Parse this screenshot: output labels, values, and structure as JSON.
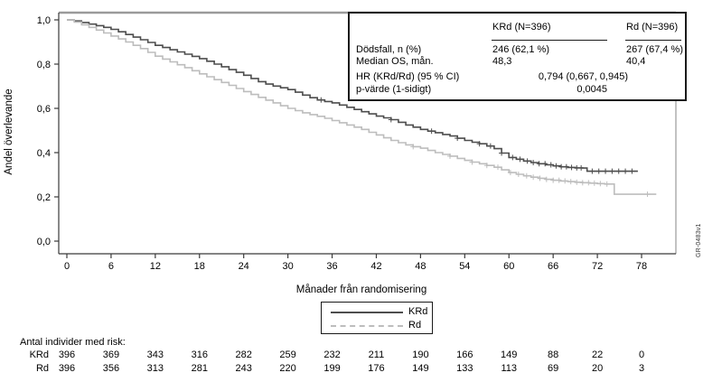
{
  "figure": {
    "watermark": "GR-0483v1"
  },
  "chart_data": {
    "type": "line",
    "subtype": "kaplan-meier-step",
    "title": "",
    "xlabel": "Månader från randomisering",
    "ylabel": "Andel överlevande",
    "xlim": [
      0,
      80
    ],
    "ylim": [
      0.0,
      1.0
    ],
    "grid": false,
    "x_ticks": [
      0,
      6,
      12,
      18,
      24,
      30,
      36,
      42,
      48,
      54,
      60,
      66,
      72,
      78
    ],
    "y_ticks": [
      {
        "value": 0.0,
        "label": "0,0"
      },
      {
        "value": 0.2,
        "label": "0,2"
      },
      {
        "value": 0.4,
        "label": "0,4"
      },
      {
        "value": 0.6,
        "label": "0,6"
      },
      {
        "value": 0.8,
        "label": "0,8"
      },
      {
        "value": 1.0,
        "label": "1,0"
      }
    ],
    "legend_position": "bottom",
    "series": [
      {
        "name": "KRd",
        "color": "#4d4d4d",
        "style": "solid",
        "points": [
          [
            0,
            1.0
          ],
          [
            1,
            0.995
          ],
          [
            2,
            0.988
          ],
          [
            3,
            0.981
          ],
          [
            4,
            0.974
          ],
          [
            5,
            0.966
          ],
          [
            6,
            0.957
          ],
          [
            7,
            0.946
          ],
          [
            8,
            0.934
          ],
          [
            9,
            0.922
          ],
          [
            10,
            0.91
          ],
          [
            11,
            0.898
          ],
          [
            12,
            0.885
          ],
          [
            13,
            0.875
          ],
          [
            14,
            0.865
          ],
          [
            15,
            0.855
          ],
          [
            16,
            0.845
          ],
          [
            17,
            0.835
          ],
          [
            18,
            0.825
          ],
          [
            19,
            0.813
          ],
          [
            20,
            0.8
          ],
          [
            21,
            0.788
          ],
          [
            22,
            0.775
          ],
          [
            23,
            0.763
          ],
          [
            24,
            0.75
          ],
          [
            25,
            0.735
          ],
          [
            26,
            0.721
          ],
          [
            27,
            0.71
          ],
          [
            28,
            0.701
          ],
          [
            29,
            0.693
          ],
          [
            30,
            0.685
          ],
          [
            31,
            0.673
          ],
          [
            32,
            0.66
          ],
          [
            33,
            0.648
          ],
          [
            34,
            0.638
          ],
          [
            35,
            0.631
          ],
          [
            36,
            0.625
          ],
          [
            37,
            0.615
          ],
          [
            38,
            0.605
          ],
          [
            39,
            0.595
          ],
          [
            40,
            0.585
          ],
          [
            41,
            0.575
          ],
          [
            42,
            0.565
          ],
          [
            43,
            0.557
          ],
          [
            44,
            0.549
          ],
          [
            45,
            0.537
          ],
          [
            46,
            0.525
          ],
          [
            47,
            0.515
          ],
          [
            48,
            0.505
          ],
          [
            49,
            0.497
          ],
          [
            50,
            0.49
          ],
          [
            51,
            0.482
          ],
          [
            52,
            0.475
          ],
          [
            53,
            0.465
          ],
          [
            54,
            0.455
          ],
          [
            55,
            0.447
          ],
          [
            56,
            0.44
          ],
          [
            57,
            0.43
          ],
          [
            58,
            0.418
          ],
          [
            59,
            0.398
          ],
          [
            60,
            0.378
          ],
          [
            61,
            0.37
          ],
          [
            62,
            0.362
          ],
          [
            63,
            0.355
          ],
          [
            64,
            0.35
          ],
          [
            65,
            0.345
          ],
          [
            66,
            0.34
          ],
          [
            67,
            0.336
          ],
          [
            68,
            0.333
          ],
          [
            69,
            0.331
          ],
          [
            70,
            0.33
          ],
          [
            70.6,
            0.316
          ],
          [
            77.5,
            0.316
          ]
        ],
        "censor_months": [
          34.5,
          44,
          49.5,
          53,
          56,
          57.5,
          59,
          60.5,
          61.5,
          62.5,
          63.3,
          64.1,
          64.9,
          65.7,
          66.4,
          67.1,
          67.8,
          68.5,
          69.2,
          69.8,
          71.3,
          72.2,
          73.1,
          74,
          74.9,
          75.8,
          76.7
        ]
      },
      {
        "name": "Rd",
        "color": "#bdbdbd",
        "style": "dashed",
        "points": [
          [
            0,
            1.0
          ],
          [
            1,
            0.99
          ],
          [
            2,
            0.978
          ],
          [
            3,
            0.966
          ],
          [
            4,
            0.954
          ],
          [
            5,
            0.941
          ],
          [
            6,
            0.927
          ],
          [
            7,
            0.914
          ],
          [
            8,
            0.9
          ],
          [
            9,
            0.885
          ],
          [
            10,
            0.87
          ],
          [
            11,
            0.853
          ],
          [
            12,
            0.836
          ],
          [
            13,
            0.823
          ],
          [
            14,
            0.81
          ],
          [
            15,
            0.797
          ],
          [
            16,
            0.784
          ],
          [
            17,
            0.77
          ],
          [
            18,
            0.756
          ],
          [
            19,
            0.743
          ],
          [
            20,
            0.73
          ],
          [
            21,
            0.717
          ],
          [
            22,
            0.704
          ],
          [
            23,
            0.69
          ],
          [
            24,
            0.676
          ],
          [
            25,
            0.663
          ],
          [
            26,
            0.65
          ],
          [
            27,
            0.637
          ],
          [
            28,
            0.625
          ],
          [
            29,
            0.612
          ],
          [
            30,
            0.6
          ],
          [
            31,
            0.59
          ],
          [
            32,
            0.58
          ],
          [
            33,
            0.572
          ],
          [
            34,
            0.564
          ],
          [
            35,
            0.555
          ],
          [
            36,
            0.545
          ],
          [
            37,
            0.535
          ],
          [
            38,
            0.525
          ],
          [
            39,
            0.515
          ],
          [
            40,
            0.505
          ],
          [
            41,
            0.492
          ],
          [
            42,
            0.48
          ],
          [
            43,
            0.467
          ],
          [
            44,
            0.455
          ],
          [
            45,
            0.445
          ],
          [
            46,
            0.435
          ],
          [
            47,
            0.427
          ],
          [
            48,
            0.42
          ],
          [
            49,
            0.41
          ],
          [
            50,
            0.4
          ],
          [
            51,
            0.392
          ],
          [
            52,
            0.384
          ],
          [
            53,
            0.374
          ],
          [
            54,
            0.365
          ],
          [
            55,
            0.357
          ],
          [
            56,
            0.35
          ],
          [
            57,
            0.342
          ],
          [
            58,
            0.334
          ],
          [
            59,
            0.322
          ],
          [
            60,
            0.31
          ],
          [
            61,
            0.302
          ],
          [
            62,
            0.295
          ],
          [
            63,
            0.289
          ],
          [
            64,
            0.284
          ],
          [
            65,
            0.279
          ],
          [
            66,
            0.275
          ],
          [
            67,
            0.272
          ],
          [
            68,
            0.269
          ],
          [
            69,
            0.266
          ],
          [
            70,
            0.264
          ],
          [
            71,
            0.262
          ],
          [
            72,
            0.26
          ],
          [
            73,
            0.258
          ],
          [
            74.3,
            0.212
          ],
          [
            80,
            0.212
          ]
        ],
        "censor_months": [
          47,
          52,
          55,
          57,
          58.5,
          60.2,
          61.3,
          62.4,
          63.3,
          64.2,
          65.1,
          66,
          66.8,
          67.6,
          68.4,
          69.2,
          70,
          70.8,
          71.6,
          72.4,
          73.3,
          78.8
        ]
      }
    ]
  },
  "stats_box": {
    "col_headers": [
      "KRd (N=396)",
      "Rd (N=396)"
    ],
    "rows": [
      {
        "label": "Dödsfall, n (%)",
        "krd": "246 (62,1 %)",
        "rd": "267 (67,4 %)"
      },
      {
        "label": "Median OS, mån.",
        "krd": "48,3",
        "rd": "40,4"
      },
      {
        "label": "HR (KRd/Rd) (95 % CI)",
        "krd": "0,794 (0,667, 0,945)",
        "rd": ""
      },
      {
        "label": "p-värde (1-sidigt)",
        "krd": "0,0045",
        "rd": ""
      }
    ]
  },
  "legend": {
    "items": [
      {
        "label": "KRd"
      },
      {
        "label": "Rd"
      }
    ]
  },
  "risk_table": {
    "title": "Antal individer med risk:",
    "rows": [
      {
        "label": "KRd",
        "counts": [
          396,
          369,
          343,
          316,
          282,
          259,
          232,
          211,
          190,
          166,
          149,
          88,
          22,
          0
        ]
      },
      {
        "label": "Rd",
        "counts": [
          396,
          356,
          313,
          281,
          243,
          220,
          199,
          176,
          149,
          133,
          113,
          69,
          20,
          3
        ]
      }
    ]
  }
}
